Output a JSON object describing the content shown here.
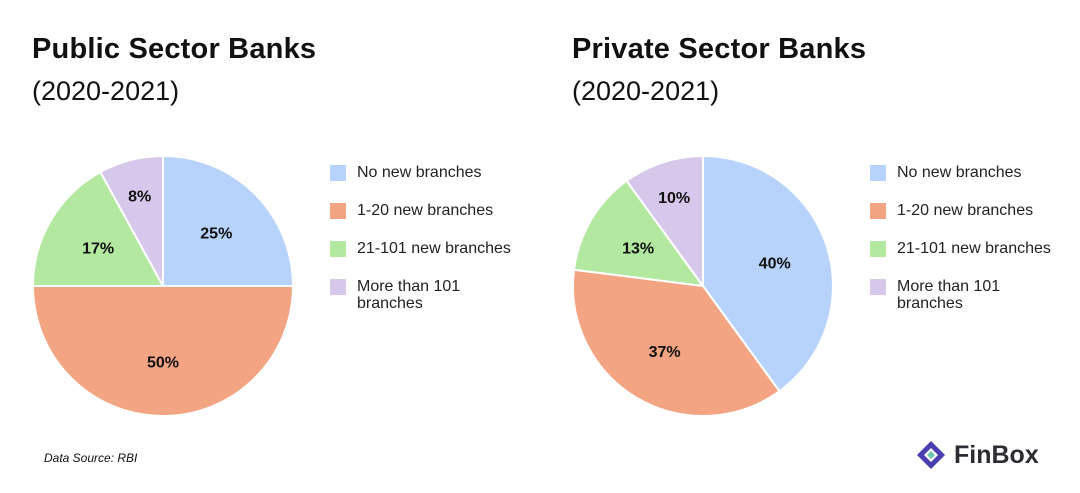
{
  "legend_labels": [
    "No new branches",
    "1-20 new branches",
    "21-101 new branches",
    "More than 101 branches"
  ],
  "colors": [
    "#b7d2fb",
    "#f3a482",
    "#b3e8a0",
    "#d5c8ea"
  ],
  "chart_data": [
    {
      "type": "pie",
      "title": "Public Sector Banks",
      "subtitle": "(2020-2021)",
      "categories": [
        "No new branches",
        "1-20 new branches",
        "21-101 new branches",
        "More than 101 branches"
      ],
      "values": [
        25,
        50,
        17,
        8
      ],
      "data_labels": [
        "25%",
        "50%",
        "17%",
        "8%"
      ],
      "legend_placement": "right"
    },
    {
      "type": "pie",
      "title": "Private Sector Banks",
      "subtitle": "(2020-2021)",
      "categories": [
        "No new branches",
        "1-20 new branches",
        "21-101 new branches",
        "More than 101 branches"
      ],
      "values": [
        40,
        37,
        13,
        10
      ],
      "data_labels": [
        "40%",
        "37%",
        "13%",
        "10%"
      ],
      "legend_placement": "right"
    }
  ],
  "footer": {
    "source": "Data Source: RBI",
    "brand": "FinBox",
    "brand_colors": [
      "#4a3fb0",
      "#6ec6b0"
    ]
  }
}
